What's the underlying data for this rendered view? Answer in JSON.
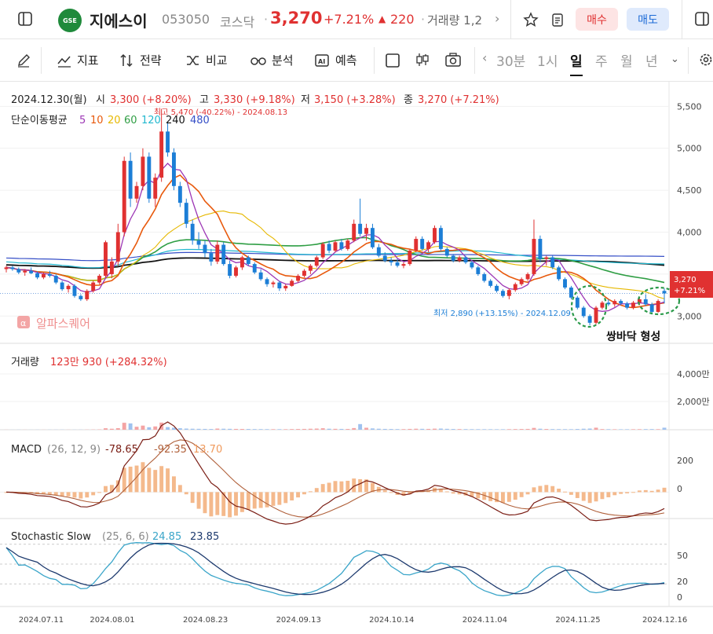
{
  "header": {
    "name": "지에스이",
    "code": "053050",
    "market": "코스닥",
    "price": "3,270",
    "change_pct": "+7.21%",
    "change_abs": "220",
    "volume_label": "거래량 1,2",
    "buy_label": "매수",
    "sell_label": "매도",
    "logo_text": "GSE"
  },
  "toolbar": {
    "indicator": "지표",
    "strategy": "전략",
    "compare": "비교",
    "analysis": "분석",
    "forecast": "예측",
    "timeframes": [
      "30분",
      "1시",
      "일",
      "주",
      "월",
      "년"
    ],
    "active_timeframe": "일"
  },
  "colors": {
    "up": "#e03131",
    "down": "#1c7ed6",
    "ma5": "#9c36b5",
    "ma10": "#e8590c",
    "ma20": "#e6b800",
    "ma60": "#2f9e44",
    "ma120": "#22b8cf",
    "ma240": "#111111",
    "ma480": "#364fc7",
    "stoch_k": "#3aa5c9",
    "stoch_d": "#1d3a6e"
  },
  "price_panel": {
    "ohlc_date": "2024.12.30(월)",
    "open_label": "시",
    "open": "3,300 (+8.20%)",
    "high_label": "고",
    "high": "3,330 (+9.18%)",
    "low_label": "저",
    "low": "3,150 (+3.28%)",
    "close_label": "종",
    "close": "3,270 (+7.21%)",
    "ma_label": "단순이동평균",
    "ma_periods": [
      "5",
      "10",
      "20",
      "60",
      "120",
      "240",
      "480"
    ],
    "max_note": "최고 5,470 (-40.22%) - 2024.08.13",
    "min_note": "최저 2,890 (+13.15%) - 2024.12.09",
    "watermark": "알파스퀘어",
    "annotation": "쌍바닥 형성",
    "price_tag": "3,270",
    "price_tag_pct": "+7.21%"
  },
  "volume_panel": {
    "label": "거래량",
    "value": "123만 930 (+284.32%)",
    "ticks": [
      "4,000만",
      "2,000만"
    ]
  },
  "macd_panel": {
    "label": "MACD",
    "params": "(26, 12, 9)",
    "macd": "-78.65",
    "signal": "-92.35",
    "hist": "13.70",
    "ticks": [
      "200",
      "0"
    ]
  },
  "stoch_panel": {
    "label": "Stochastic Slow",
    "params": "(25, 6, 6)",
    "k": "24.85",
    "d": "23.85",
    "ticks": [
      "50",
      "20",
      "0"
    ]
  },
  "chart_data": {
    "type": "candlestick",
    "y_ticks": [
      "5,500",
      "5,000",
      "4,500",
      "4,000",
      "3,500",
      "3,000"
    ],
    "ylim": [
      2750,
      5700
    ],
    "x_ticks": [
      "2024.07.11",
      "2024.08.01",
      "2024.08.23",
      "2024.09.13",
      "2024.10.14",
      "2024.11.04",
      "2024.11.25",
      "2024.12.16"
    ],
    "candles": [
      [
        3560,
        3600,
        3520,
        3580
      ],
      [
        3580,
        3600,
        3540,
        3560
      ],
      [
        3560,
        3580,
        3500,
        3520
      ],
      [
        3520,
        3560,
        3480,
        3540
      ],
      [
        3540,
        3580,
        3500,
        3510
      ],
      [
        3510,
        3530,
        3440,
        3460
      ],
      [
        3460,
        3520,
        3440,
        3500
      ],
      [
        3500,
        3540,
        3460,
        3480
      ],
      [
        3480,
        3500,
        3380,
        3400
      ],
      [
        3400,
        3420,
        3300,
        3320
      ],
      [
        3320,
        3380,
        3280,
        3360
      ],
      [
        3360,
        3380,
        3220,
        3240
      ],
      [
        3240,
        3260,
        3180,
        3200
      ],
      [
        3200,
        3320,
        3180,
        3300
      ],
      [
        3300,
        3420,
        3280,
        3400
      ],
      [
        3400,
        3500,
        3380,
        3480
      ],
      [
        3480,
        3900,
        3460,
        3880
      ],
      [
        3500,
        3700,
        3450,
        3650
      ],
      [
        3650,
        4100,
        3600,
        4000
      ],
      [
        4000,
        4900,
        3950,
        4850
      ],
      [
        4850,
        4950,
        4300,
        4400
      ],
      [
        4400,
        4600,
        4350,
        4550
      ],
      [
        4550,
        5000,
        4500,
        4900
      ],
      [
        4900,
        4950,
        4350,
        4400
      ],
      [
        4400,
        4700,
        4300,
        4650
      ],
      [
        4650,
        5470,
        4600,
        5200
      ],
      [
        5200,
        5300,
        4900,
        4950
      ],
      [
        4950,
        5000,
        4500,
        4550
      ],
      [
        4550,
        4600,
        4300,
        4350
      ],
      [
        4350,
        4400,
        4050,
        4100
      ],
      [
        4100,
        4150,
        3850,
        3900
      ],
      [
        3900,
        4000,
        3800,
        3850
      ],
      [
        3850,
        3900,
        3700,
        3750
      ],
      [
        3750,
        3800,
        3600,
        3650
      ],
      [
        3650,
        3900,
        3620,
        3850
      ],
      [
        3850,
        3880,
        3600,
        3620
      ],
      [
        3620,
        3660,
        3450,
        3480
      ],
      [
        3480,
        3600,
        3460,
        3580
      ],
      [
        3580,
        3720,
        3550,
        3700
      ],
      [
        3700,
        3720,
        3600,
        3620
      ],
      [
        3620,
        3640,
        3500,
        3520
      ],
      [
        3520,
        3560,
        3420,
        3440
      ],
      [
        3440,
        3460,
        3350,
        3380
      ],
      [
        3380,
        3420,
        3340,
        3400
      ],
      [
        3400,
        3420,
        3300,
        3330
      ],
      [
        3330,
        3380,
        3300,
        3360
      ],
      [
        3360,
        3440,
        3350,
        3420
      ],
      [
        3420,
        3500,
        3400,
        3480
      ],
      [
        3480,
        3560,
        3460,
        3540
      ],
      [
        3540,
        3620,
        3500,
        3600
      ],
      [
        3600,
        3720,
        3580,
        3700
      ],
      [
        3700,
        3880,
        3680,
        3860
      ],
      [
        3860,
        3900,
        3750,
        3780
      ],
      [
        3780,
        3900,
        3760,
        3880
      ],
      [
        3880,
        3920,
        3780,
        3800
      ],
      [
        3800,
        3920,
        3780,
        3900
      ],
      [
        3900,
        4150,
        3880,
        4100
      ],
      [
        4100,
        4400,
        3950,
        3980
      ],
      [
        3980,
        4100,
        3900,
        4050
      ],
      [
        4050,
        4100,
        3800,
        3820
      ],
      [
        3820,
        3860,
        3700,
        3720
      ],
      [
        3720,
        3760,
        3640,
        3660
      ],
      [
        3660,
        3700,
        3600,
        3640
      ],
      [
        3640,
        3680,
        3580,
        3600
      ],
      [
        3600,
        3640,
        3570,
        3620
      ],
      [
        3620,
        3800,
        3600,
        3780
      ],
      [
        3780,
        3950,
        3760,
        3920
      ],
      [
        3920,
        3950,
        3780,
        3800
      ],
      [
        3800,
        3900,
        3760,
        3880
      ],
      [
        3880,
        4080,
        3860,
        4050
      ],
      [
        4050,
        4080,
        3780,
        3800
      ],
      [
        3800,
        3820,
        3700,
        3720
      ],
      [
        3720,
        3740,
        3640,
        3660
      ],
      [
        3660,
        3720,
        3640,
        3700
      ],
      [
        3700,
        3720,
        3620,
        3640
      ],
      [
        3640,
        3660,
        3560,
        3580
      ],
      [
        3580,
        3600,
        3480,
        3500
      ],
      [
        3500,
        3520,
        3400,
        3420
      ],
      [
        3420,
        3440,
        3340,
        3360
      ],
      [
        3360,
        3380,
        3280,
        3300
      ],
      [
        3300,
        3320,
        3220,
        3240
      ],
      [
        3240,
        3330,
        3200,
        3310
      ],
      [
        3310,
        3400,
        3290,
        3380
      ],
      [
        3380,
        3460,
        3360,
        3440
      ],
      [
        3440,
        3520,
        3420,
        3500
      ],
      [
        3500,
        4150,
        3480,
        3920
      ],
      [
        3920,
        3960,
        3640,
        3680
      ],
      [
        3680,
        3720,
        3600,
        3700
      ],
      [
        3700,
        3720,
        3560,
        3580
      ],
      [
        3580,
        3600,
        3420,
        3440
      ],
      [
        3440,
        3460,
        3320,
        3340
      ],
      [
        3340,
        3360,
        3200,
        3220
      ],
      [
        3220,
        3240,
        3080,
        3100
      ],
      [
        3100,
        3120,
        2980,
        3000
      ],
      [
        3000,
        3020,
        2890,
        2920
      ],
      [
        2920,
        3120,
        2900,
        3100
      ],
      [
        3100,
        3180,
        3080,
        3160
      ],
      [
        3160,
        3200,
        3120,
        3140
      ],
      [
        3140,
        3200,
        3110,
        3180
      ],
      [
        3180,
        3200,
        3130,
        3150
      ],
      [
        3150,
        3170,
        3080,
        3100
      ],
      [
        3100,
        3180,
        3080,
        3160
      ],
      [
        3160,
        3220,
        3130,
        3200
      ],
      [
        3200,
        3260,
        3120,
        3140
      ],
      [
        3140,
        3160,
        3020,
        3050
      ],
      [
        3050,
        3200,
        3040,
        3180
      ],
      [
        3300,
        3330,
        3150,
        3270
      ]
    ],
    "volume": [
      5,
      4,
      6,
      5,
      4,
      6,
      5,
      7,
      8,
      9,
      6,
      7,
      8,
      12,
      15,
      20,
      90,
      60,
      95,
      420,
      380,
      180,
      250,
      150,
      200,
      430,
      160,
      120,
      90,
      70,
      60,
      55,
      50,
      45,
      70,
      60,
      55,
      50,
      48,
      45,
      40,
      38,
      36,
      35,
      34,
      33,
      40,
      45,
      50,
      60,
      70,
      90,
      60,
      55,
      50,
      48,
      100,
      340,
      120,
      80,
      60,
      50,
      45,
      40,
      38,
      50,
      60,
      55,
      50,
      65,
      70,
      55,
      45,
      40,
      38,
      35,
      34,
      33,
      32,
      30,
      30,
      35,
      40,
      45,
      50,
      110,
      60,
      45,
      40,
      38,
      36,
      34,
      45,
      60,
      70,
      123,
      40,
      35,
      30,
      28,
      30,
      32,
      35,
      38,
      40,
      35,
      123
    ],
    "vol_max": 4400,
    "macd_range": [
      -140,
      260
    ],
    "stoch_range": [
      0,
      100
    ]
  }
}
